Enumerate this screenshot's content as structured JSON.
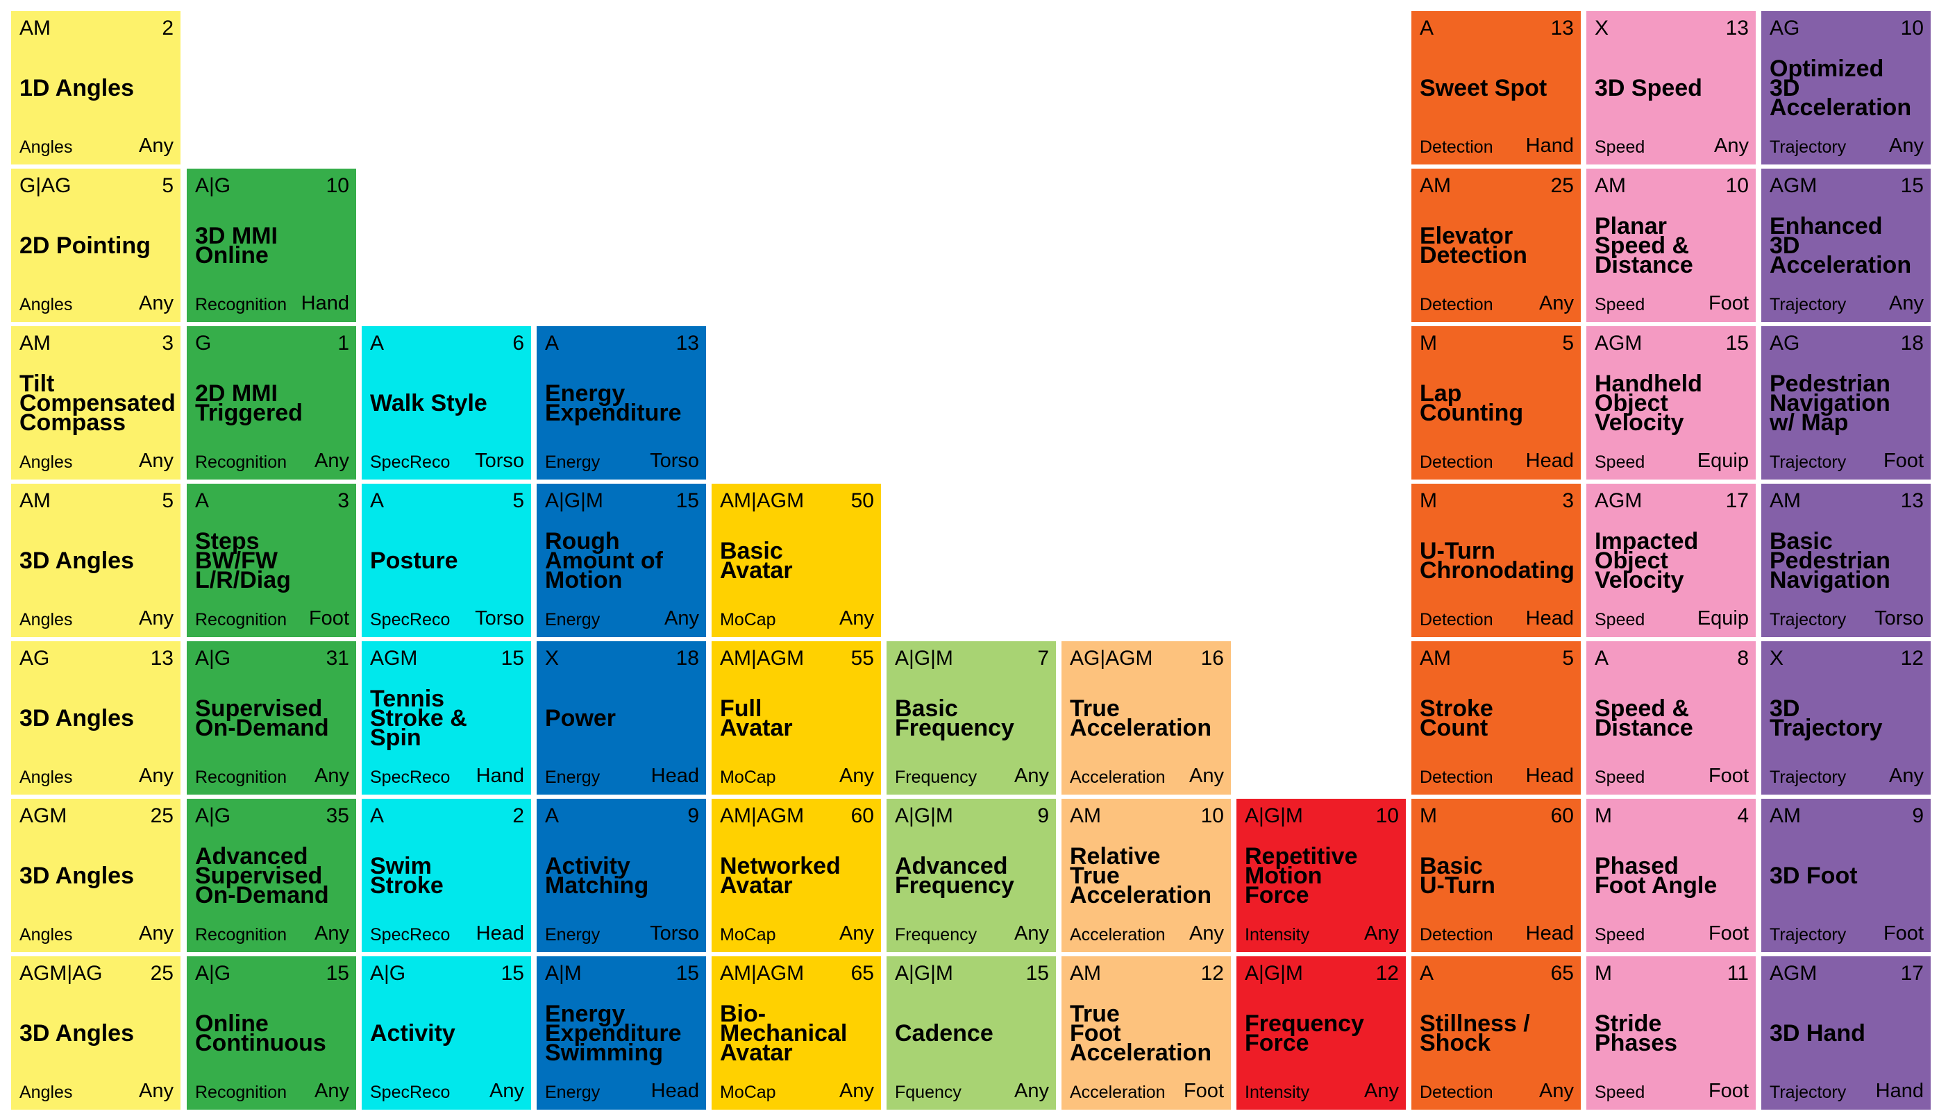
{
  "colors": {
    "Angles": "#FDF26B",
    "Recognition": "#36AE4A",
    "SpecReco": "#00E8EC",
    "Energy": "#0070BE",
    "MoCap": "#FFD100",
    "Frequency": "#A8D373",
    "Acceleration": "#FDC27D",
    "Intensity": "#EE1D27",
    "Detection": "#F26522",
    "Speed": "#F49AC2",
    "Trajectory": "#8460A8"
  },
  "columns": [
    {
      "id": "angles",
      "color_key": "Angles",
      "tiles": [
        {
          "row": 0,
          "sym": "AM",
          "num": "2",
          "name": "1D Angles",
          "cat": "Angles",
          "loc": "Any"
        },
        {
          "row": 1,
          "sym": "G|AG",
          "num": "5",
          "name": "2D Pointing",
          "cat": "Angles",
          "loc": "Any"
        },
        {
          "row": 2,
          "sym": "AM",
          "num": "3",
          "name": "Tilt\nCompensated\nCompass",
          "cat": "Angles",
          "loc": "Any"
        },
        {
          "row": 3,
          "sym": "AM",
          "num": "5",
          "name": "3D Angles",
          "cat": "Angles",
          "loc": "Any"
        },
        {
          "row": 4,
          "sym": "AG",
          "num": "13",
          "name": "3D Angles",
          "cat": "Angles",
          "loc": "Any"
        },
        {
          "row": 5,
          "sym": "AGM",
          "num": "25",
          "name": "3D Angles",
          "cat": "Angles",
          "loc": "Any"
        },
        {
          "row": 6,
          "sym": "AGM|AG",
          "num": "25",
          "name": "3D Angles",
          "cat": "Angles",
          "loc": "Any"
        }
      ]
    },
    {
      "id": "recognition",
      "color_key": "Recognition",
      "tiles": [
        {
          "row": 1,
          "sym": "A|G",
          "num": "10",
          "name": "3D MMI\nOnline",
          "cat": "Recognition",
          "loc": "Hand"
        },
        {
          "row": 2,
          "sym": "G",
          "num": "1",
          "name": "2D MMI\nTriggered",
          "cat": "Recognition",
          "loc": "Any"
        },
        {
          "row": 3,
          "sym": "A",
          "num": "3",
          "name": "Steps\nBW/FW\nL/R/Diag",
          "cat": "Recognition",
          "loc": "Foot"
        },
        {
          "row": 4,
          "sym": "A|G",
          "num": "31",
          "name": "Supervised\nOn-Demand",
          "cat": "Recognition",
          "loc": "Any"
        },
        {
          "row": 5,
          "sym": "A|G",
          "num": "35",
          "name": "Advanced\nSupervised\nOn-Demand",
          "cat": "Recognition",
          "loc": "Any"
        },
        {
          "row": 6,
          "sym": "A|G",
          "num": "15",
          "name": "Online\nContinuous",
          "cat": "Recognition",
          "loc": "Any"
        }
      ]
    },
    {
      "id": "specreco",
      "color_key": "SpecReco",
      "tiles": [
        {
          "row": 2,
          "sym": "A",
          "num": "6",
          "name": "Walk Style",
          "cat": "SpecReco",
          "loc": "Torso"
        },
        {
          "row": 3,
          "sym": "A",
          "num": "5",
          "name": "Posture",
          "cat": "SpecReco",
          "loc": "Torso"
        },
        {
          "row": 4,
          "sym": "AGM",
          "num": "15",
          "name": "Tennis\nStroke &\nSpin",
          "cat": "SpecReco",
          "loc": "Hand"
        },
        {
          "row": 5,
          "sym": "A",
          "num": "2",
          "name": "Swim\nStroke",
          "cat": "SpecReco",
          "loc": "Head"
        },
        {
          "row": 6,
          "sym": "A|G",
          "num": "15",
          "name": "Activity",
          "cat": "SpecReco",
          "loc": "Any"
        }
      ]
    },
    {
      "id": "energy",
      "color_key": "Energy",
      "tiles": [
        {
          "row": 2,
          "sym": "A",
          "num": "13",
          "name": "Energy\nExpenditure",
          "cat": "Energy",
          "loc": "Torso"
        },
        {
          "row": 3,
          "sym": "A|G|M",
          "num": "15",
          "name": "Rough\nAmount of\nMotion",
          "cat": "Energy",
          "loc": "Any"
        },
        {
          "row": 4,
          "sym": "X",
          "num": "18",
          "name": "Power",
          "cat": "Energy",
          "loc": "Head"
        },
        {
          "row": 5,
          "sym": "A",
          "num": "9",
          "name": "Activity\nMatching",
          "cat": "Energy",
          "loc": "Torso"
        },
        {
          "row": 6,
          "sym": "A|M",
          "num": "15",
          "name": "Energy\nExpenditure\nSwimming",
          "cat": "Energy",
          "loc": "Head"
        }
      ]
    },
    {
      "id": "mocap",
      "color_key": "MoCap",
      "tiles": [
        {
          "row": 3,
          "sym": "AM|AGM",
          "num": "50",
          "name": "Basic\nAvatar",
          "cat": "MoCap",
          "loc": "Any"
        },
        {
          "row": 4,
          "sym": "AM|AGM",
          "num": "55",
          "name": "Full\nAvatar",
          "cat": "MoCap",
          "loc": "Any"
        },
        {
          "row": 5,
          "sym": "AM|AGM",
          "num": "60",
          "name": "Networked\nAvatar",
          "cat": "MoCap",
          "loc": "Any"
        },
        {
          "row": 6,
          "sym": "AM|AGM",
          "num": "65",
          "name": "Bio-\nMechanical\nAvatar",
          "cat": "MoCap",
          "loc": "Any"
        }
      ]
    },
    {
      "id": "frequency",
      "color_key": "Frequency",
      "tiles": [
        {
          "row": 4,
          "sym": "A|G|M",
          "num": "7",
          "name": "Basic\nFrequency",
          "cat": "Frequency",
          "loc": "Any"
        },
        {
          "row": 5,
          "sym": "A|G|M",
          "num": "9",
          "name": "Advanced\nFrequency",
          "cat": "Frequency",
          "loc": "Any"
        },
        {
          "row": 6,
          "sym": "A|G|M",
          "num": "15",
          "name": "Cadence",
          "cat": "Fquency",
          "loc": "Any"
        }
      ]
    },
    {
      "id": "acceleration",
      "color_key": "Acceleration",
      "tiles": [
        {
          "row": 4,
          "sym": "AG|AGM",
          "num": "16",
          "name": "True\nAcceleration",
          "cat": "Acceleration",
          "loc": "Any"
        },
        {
          "row": 5,
          "sym": "AM",
          "num": "10",
          "name": "Relative\nTrue\nAcceleration",
          "cat": "Acceleration",
          "loc": "Any"
        },
        {
          "row": 6,
          "sym": "AM",
          "num": "12",
          "name": "True\nFoot\nAcceleration",
          "cat": "Acceleration",
          "loc": "Foot"
        }
      ]
    },
    {
      "id": "intensity",
      "color_key": "Intensity",
      "tiles": [
        {
          "row": 5,
          "sym": "A|G|M",
          "num": "10",
          "name": "Repetitive\nMotion\nForce",
          "cat": "Intensity",
          "loc": "Any"
        },
        {
          "row": 6,
          "sym": "A|G|M",
          "num": "12",
          "name": "Frequency\nForce",
          "cat": "Intensity",
          "loc": "Any"
        }
      ]
    },
    {
      "id": "detection",
      "color_key": "Detection",
      "tiles": [
        {
          "row": 0,
          "sym": "A",
          "num": "13",
          "name": "Sweet Spot",
          "cat": "Detection",
          "loc": "Hand"
        },
        {
          "row": 1,
          "sym": "AM",
          "num": "25",
          "name": "Elevator\nDetection",
          "cat": "Detection",
          "loc": "Any"
        },
        {
          "row": 2,
          "sym": "M",
          "num": "5",
          "name": "Lap\nCounting",
          "cat": "Detection",
          "loc": "Head"
        },
        {
          "row": 3,
          "sym": "M",
          "num": "3",
          "name": "U-Turn\nChronodating",
          "cat": "Detection",
          "loc": "Head"
        },
        {
          "row": 4,
          "sym": "AM",
          "num": "5",
          "name": "Stroke\nCount",
          "cat": "Detection",
          "loc": "Head"
        },
        {
          "row": 5,
          "sym": "M",
          "num": "60",
          "name": "Basic\nU-Turn",
          "cat": "Detection",
          "loc": "Head"
        },
        {
          "row": 6,
          "sym": "A",
          "num": "65",
          "name": "Stillness /\nShock",
          "cat": "Detection",
          "loc": "Any"
        }
      ]
    },
    {
      "id": "speed",
      "color_key": "Speed",
      "tiles": [
        {
          "row": 0,
          "sym": "X",
          "num": "13",
          "name": "3D Speed",
          "cat": "Speed",
          "loc": "Any"
        },
        {
          "row": 1,
          "sym": "AM",
          "num": "10",
          "name": "Planar\nSpeed &\nDistance",
          "cat": "Speed",
          "loc": "Foot"
        },
        {
          "row": 2,
          "sym": "AGM",
          "num": "15",
          "name": "Handheld\nObject\nVelocity",
          "cat": "Speed",
          "loc": "Equip"
        },
        {
          "row": 3,
          "sym": "AGM",
          "num": "17",
          "name": "Impacted\nObject\nVelocity",
          "cat": "Speed",
          "loc": "Equip"
        },
        {
          "row": 4,
          "sym": "A",
          "num": "8",
          "name": "Speed &\nDistance",
          "cat": "Speed",
          "loc": "Foot"
        },
        {
          "row": 5,
          "sym": "M",
          "num": "4",
          "name": "Phased\nFoot Angle",
          "cat": "Speed",
          "loc": "Foot"
        },
        {
          "row": 6,
          "sym": "M",
          "num": "11",
          "name": "Stride\nPhases",
          "cat": "Speed",
          "loc": "Foot"
        }
      ]
    },
    {
      "id": "trajectory",
      "color_key": "Trajectory",
      "tiles": [
        {
          "row": 0,
          "sym": "AG",
          "num": "10",
          "name": "Optimized\n3D\nAcceleration",
          "cat": "Trajectory",
          "loc": "Any"
        },
        {
          "row": 1,
          "sym": "AGM",
          "num": "15",
          "name": "Enhanced\n3D\nAcceleration",
          "cat": "Trajectory",
          "loc": "Any"
        },
        {
          "row": 2,
          "sym": "AG",
          "num": "18",
          "name": "Pedestrian\nNavigation\nw/ Map",
          "cat": "Trajectory",
          "loc": "Foot"
        },
        {
          "row": 3,
          "sym": "AM",
          "num": "13",
          "name": "Basic\nPedestrian\nNavigation",
          "cat": "Trajectory",
          "loc": "Torso"
        },
        {
          "row": 4,
          "sym": "X",
          "num": "12",
          "name": "3D\nTrajectory",
          "cat": "Trajectory",
          "loc": "Any"
        },
        {
          "row": 5,
          "sym": "AM",
          "num": "9",
          "name": "3D Foot",
          "cat": "Trajectory",
          "loc": "Foot"
        },
        {
          "row": 6,
          "sym": "AGM",
          "num": "17",
          "name": "3D Hand",
          "cat": "Trajectory",
          "loc": "Hand"
        }
      ]
    }
  ]
}
